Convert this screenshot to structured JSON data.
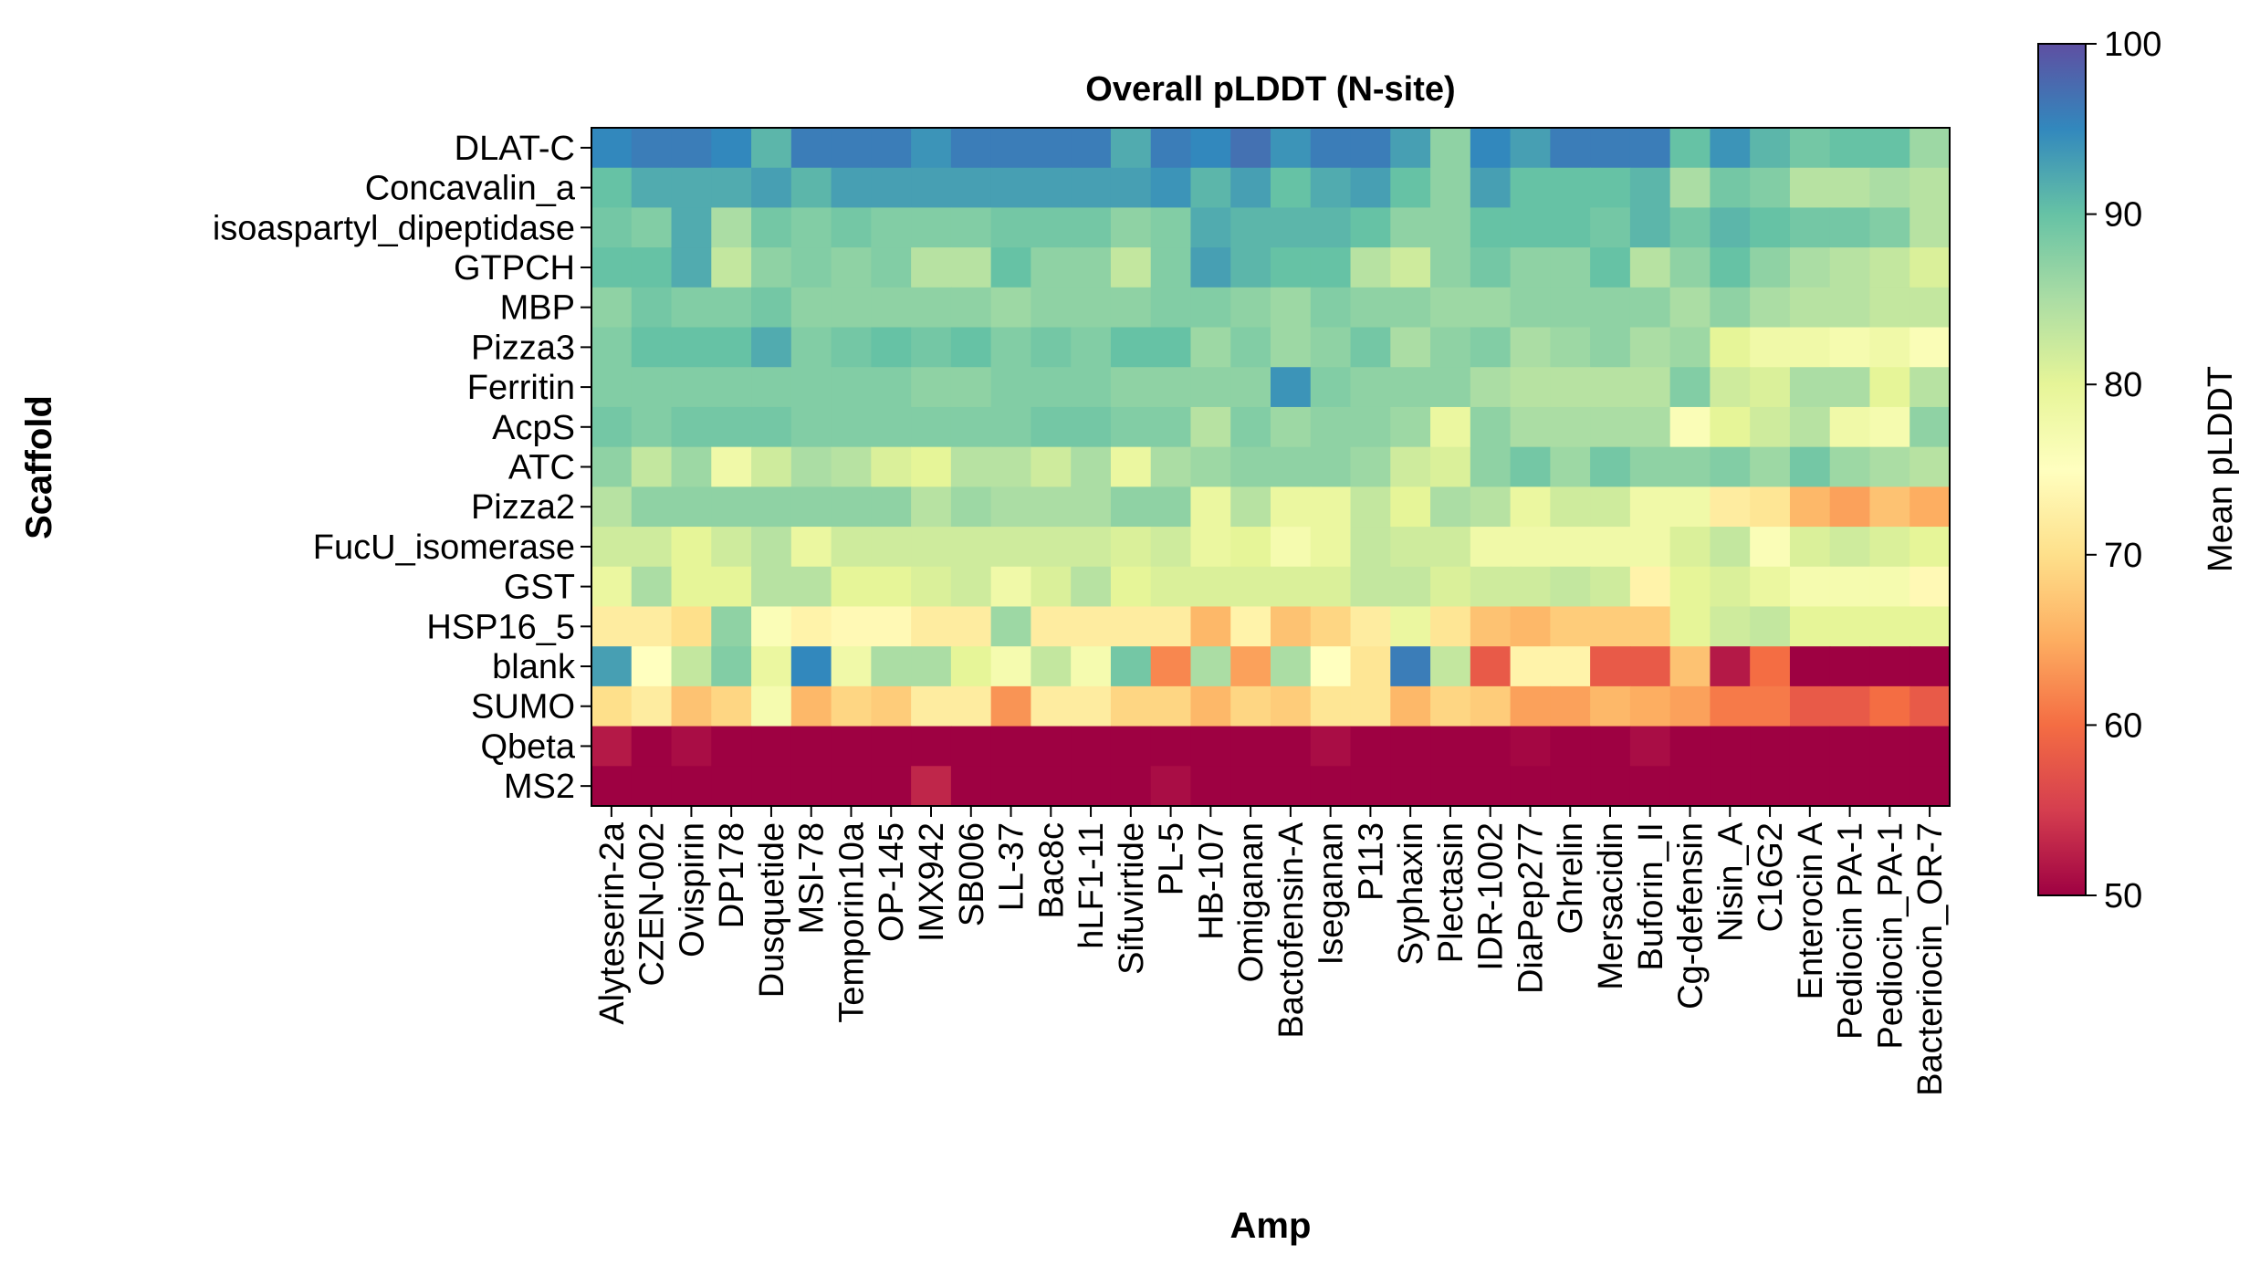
{
  "chart_data": {
    "type": "heatmap",
    "title": "Overall pLDDT (N-site)",
    "xlabel": "Amp",
    "ylabel": "Scaffold",
    "colorbar_label": "Mean pLDDT",
    "colorbar_ticks": [
      50,
      60,
      70,
      80,
      90,
      100
    ],
    "vmin": 50,
    "vmax": 100,
    "colormap": "Spectral",
    "colormap_stops": [
      "#9e0142",
      "#d53e4f",
      "#f46d43",
      "#fdae61",
      "#fee08b",
      "#ffffbf",
      "#e6f598",
      "#abdda4",
      "#66c2a5",
      "#3288bd",
      "#5e4fa2"
    ],
    "x_categories": [
      "Alyteserin-2a",
      "CZEN-002",
      "Ovispirin",
      "DP178",
      "Dusquetide",
      "MSI-78",
      "Temporin10a",
      "OP-145",
      "IMX942",
      "SB006",
      "LL-37",
      "Bac8c",
      "hLF1-11",
      "Sifuvirtide",
      "PL-5",
      "HB-107",
      "Omiganan",
      "Bactofensin-A",
      "Iseganan",
      "P113",
      "Syphaxin",
      "Plectasin",
      "IDR-1002",
      "DiaPep277",
      "Ghrelin",
      "Mersacidin",
      "Buforin_II",
      "Cg-defensin",
      "Nisin_A",
      "C16G2",
      "Enterocin A",
      "Pediocin PA-1",
      "Pediocin_PA-1",
      "Bacteriocin_OR-7"
    ],
    "y_categories": [
      "DLAT-C",
      "Concavalin_a",
      "isoaspartyl_dipeptidase",
      "GTPCH",
      "MBP",
      "Pizza3",
      "Ferritin",
      "AcpS",
      "ATC",
      "Pizza2",
      "FucU_isomerase",
      "GST",
      "HSP16_5",
      "blank",
      "SUMO",
      "Qbeta",
      "MS2"
    ],
    "values": [
      [
        95,
        96,
        96,
        95,
        91,
        96,
        96,
        96,
        94,
        96,
        96,
        96,
        96,
        92,
        96,
        95,
        97,
        94,
        96,
        96,
        93,
        87,
        95,
        93,
        96,
        96,
        96,
        90,
        94,
        91,
        89,
        90,
        90,
        86
      ],
      [
        90,
        92,
        92,
        92,
        93,
        91,
        93,
        93,
        93,
        93,
        93,
        93,
        93,
        93,
        94,
        91,
        93,
        90,
        92,
        93,
        90,
        87,
        93,
        90,
        90,
        90,
        91,
        85,
        89,
        88,
        84,
        84,
        85,
        84
      ],
      [
        89,
        88,
        92,
        85,
        89,
        88,
        89,
        88,
        88,
        88,
        89,
        89,
        89,
        87,
        88,
        92,
        91,
        91,
        91,
        90,
        87,
        87,
        90,
        90,
        90,
        89,
        91,
        89,
        91,
        90,
        89,
        89,
        88,
        84
      ],
      [
        90,
        90,
        92,
        83,
        87,
        88,
        87,
        88,
        84,
        84,
        90,
        87,
        87,
        83,
        88,
        93,
        91,
        90,
        90,
        84,
        82,
        87,
        89,
        87,
        87,
        90,
        84,
        87,
        90,
        87,
        85,
        84,
        83,
        81
      ],
      [
        87,
        89,
        88,
        88,
        89,
        87,
        87,
        87,
        87,
        87,
        86,
        87,
        87,
        87,
        88,
        88,
        87,
        86,
        88,
        87,
        87,
        86,
        86,
        87,
        87,
        87,
        87,
        85,
        87,
        85,
        84,
        84,
        83,
        83
      ],
      [
        88,
        90,
        90,
        90,
        92,
        88,
        89,
        90,
        89,
        90,
        88,
        89,
        88,
        90,
        90,
        86,
        88,
        86,
        87,
        89,
        85,
        87,
        88,
        85,
        86,
        87,
        85,
        86,
        80,
        78,
        78,
        77,
        78,
        76
      ],
      [
        88,
        88,
        88,
        88,
        88,
        88,
        88,
        88,
        87,
        87,
        88,
        88,
        88,
        87,
        87,
        87,
        87,
        94,
        88,
        87,
        87,
        87,
        85,
        84,
        84,
        84,
        84,
        88,
        82,
        81,
        85,
        85,
        80,
        84
      ],
      [
        89,
        88,
        89,
        89,
        89,
        88,
        88,
        88,
        88,
        88,
        88,
        89,
        89,
        88,
        88,
        84,
        88,
        86,
        87,
        87,
        86,
        79,
        87,
        85,
        85,
        85,
        85,
        76,
        80,
        82,
        84,
        78,
        77,
        87
      ],
      [
        87,
        83,
        86,
        78,
        82,
        85,
        84,
        81,
        80,
        84,
        84,
        82,
        85,
        79,
        85,
        86,
        87,
        87,
        87,
        86,
        82,
        81,
        87,
        89,
        86,
        89,
        87,
        87,
        88,
        86,
        89,
        86,
        85,
        84
      ],
      [
        84,
        87,
        87,
        87,
        87,
        87,
        87,
        87,
        84,
        86,
        85,
        85,
        85,
        87,
        87,
        79,
        84,
        79,
        79,
        83,
        80,
        85,
        84,
        79,
        82,
        82,
        78,
        78,
        72,
        71,
        66,
        64,
        67,
        65
      ],
      [
        82,
        82,
        80,
        82,
        84,
        79,
        82,
        82,
        82,
        82,
        82,
        82,
        82,
        81,
        82,
        79,
        80,
        77,
        79,
        83,
        82,
        82,
        78,
        78,
        78,
        78,
        78,
        81,
        83,
        76,
        81,
        82,
        81,
        80
      ],
      [
        79,
        85,
        80,
        80,
        84,
        84,
        80,
        80,
        81,
        82,
        78,
        81,
        84,
        80,
        81,
        81,
        81,
        81,
        81,
        83,
        83,
        81,
        82,
        82,
        83,
        82,
        73,
        80,
        81,
        79,
        77,
        77,
        77,
        74
      ],
      [
        72,
        72,
        70,
        87,
        76,
        73,
        74,
        74,
        72,
        72,
        86,
        72,
        72,
        72,
        72,
        66,
        73,
        67,
        69,
        72,
        79,
        71,
        67,
        66,
        68,
        68,
        68,
        80,
        82,
        83,
        80,
        80,
        80,
        80
      ],
      [
        93,
        75,
        83,
        88,
        79,
        95,
        78,
        85,
        85,
        80,
        77,
        83,
        77,
        89,
        62,
        85,
        64,
        85,
        75,
        71,
        96,
        83,
        58,
        73,
        73,
        58,
        58,
        67,
        52,
        60,
        50,
        50,
        50,
        50
      ],
      [
        70,
        72,
        67,
        69,
        77,
        66,
        69,
        68,
        72,
        72,
        63,
        72,
        72,
        69,
        69,
        66,
        69,
        68,
        71,
        71,
        66,
        69,
        68,
        64,
        64,
        66,
        65,
        64,
        61,
        61,
        58,
        58,
        60,
        58
      ],
      [
        52,
        50,
        51,
        50,
        50,
        50,
        50,
        50,
        50,
        50,
        50,
        50,
        50,
        50,
        50,
        50,
        50,
        50,
        51,
        50,
        50,
        50,
        50,
        50.5,
        50,
        50,
        51,
        50,
        50,
        50,
        50,
        50,
        50,
        50
      ],
      [
        50,
        50,
        50,
        50,
        50,
        50,
        50,
        50,
        53,
        50,
        50,
        50,
        50,
        50,
        51,
        50,
        50,
        50,
        50,
        50,
        50,
        50,
        50,
        50,
        50,
        50,
        50,
        50,
        50,
        50,
        50,
        50,
        50,
        50
      ]
    ]
  }
}
